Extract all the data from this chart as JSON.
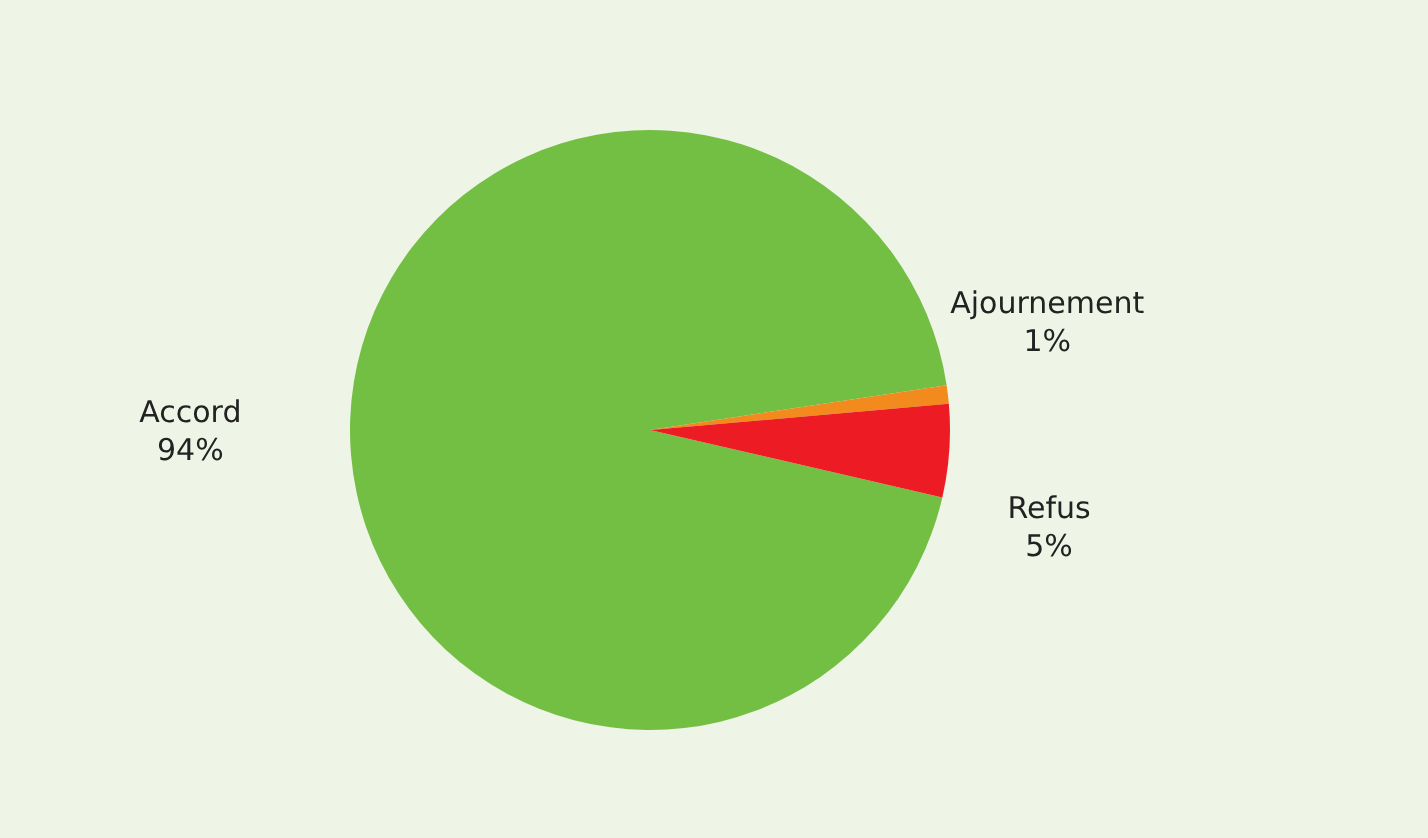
{
  "chart_data": {
    "type": "pie",
    "categories": [
      "Accord",
      "Ajournement",
      "Refus"
    ],
    "values": [
      94,
      1,
      5
    ],
    "value_labels": [
      "94%",
      "1%",
      "5%"
    ],
    "colors": [
      "#72bf44",
      "#f28a1d",
      "#ed1c24"
    ]
  }
}
